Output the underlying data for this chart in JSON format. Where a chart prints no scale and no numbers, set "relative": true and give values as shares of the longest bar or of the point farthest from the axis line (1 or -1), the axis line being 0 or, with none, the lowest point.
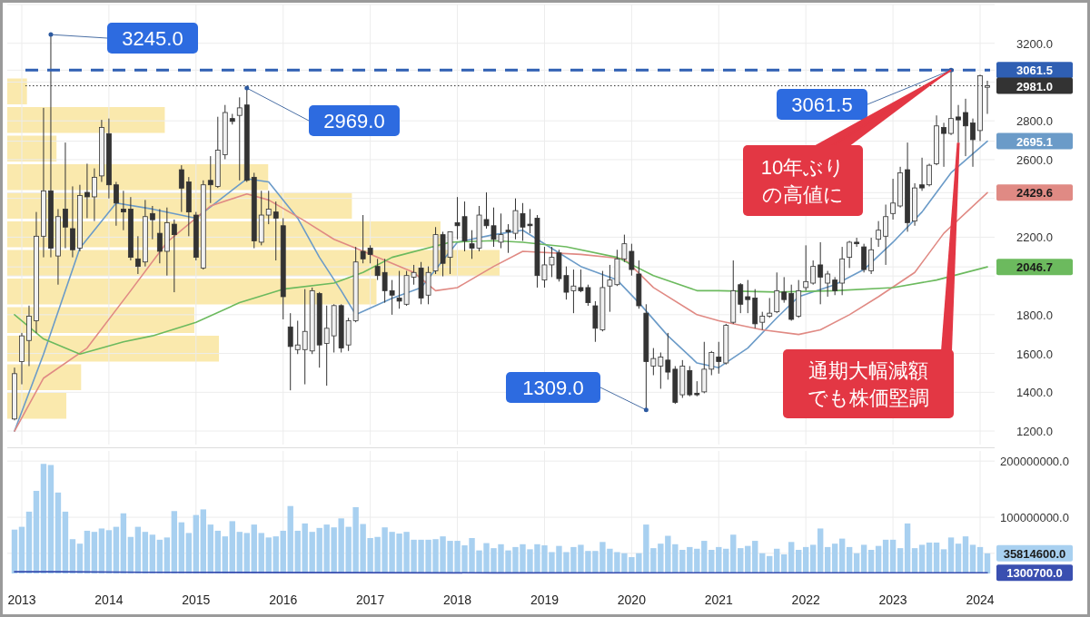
{
  "chart_data": [
    {
      "type": "candlestick",
      "color": "#333333",
      "grid": true,
      "tick_labels": "y",
      "xlim": [
        "2012-11",
        "2024-03"
      ],
      "xticks": [
        "2013",
        "2014",
        "2015",
        "2016",
        "2017",
        "2018",
        "2019",
        "2020",
        "2021",
        "2022",
        "2023",
        "2024"
      ],
      "ylim": [
        1130,
        3400
      ],
      "yticks": [
        {
          "value": 1200,
          "label": "1200.0"
        },
        {
          "value": 1400,
          "label": "1400.0"
        },
        {
          "value": 1600,
          "label": "1600.0"
        },
        {
          "value": 1800,
          "label": "1800.0"
        },
        {
          "value": 2000,
          "label": null
        },
        {
          "value": 2046.7,
          "label": "2046.7"
        },
        {
          "value": 2200,
          "label": "2200.0"
        },
        {
          "value": 2400,
          "label": null
        },
        {
          "value": 2429.6,
          "label": "2429.6"
        },
        {
          "value": 2600,
          "label": "2600.0"
        },
        {
          "value": 2695.1,
          "label": "2695.1"
        },
        {
          "value": 2800,
          "label": "2800.0"
        },
        {
          "value": 3000,
          "label": null
        },
        {
          "value": 3061.5,
          "label": "3061.5"
        },
        {
          "value": 3200,
          "label": "3200.0"
        },
        {
          "value": 3400,
          "label": null
        }
      ],
      "x": [
        "2012-12",
        "2013-01",
        "2013-02",
        "2013-03",
        "2013-04",
        "2013-05",
        "2013-06",
        "2013-07",
        "2013-08",
        "2013-09",
        "2013-10",
        "2013-11",
        "2013-12",
        "2014-01",
        "2014-02",
        "2014-03",
        "2014-04",
        "2014-05",
        "2014-06",
        "2014-07",
        "2014-08",
        "2014-09",
        "2014-10",
        "2014-11",
        "2014-12",
        "2015-01",
        "2015-02",
        "2015-03",
        "2015-04",
        "2015-05",
        "2015-06",
        "2015-07",
        "2015-08",
        "2015-09",
        "2015-10",
        "2015-11",
        "2015-12",
        "2016-01",
        "2016-02",
        "2016-03",
        "2016-04",
        "2016-05",
        "2016-06",
        "2016-07",
        "2016-08",
        "2016-09",
        "2016-10",
        "2016-11",
        "2016-12",
        "2017-01",
        "2017-02",
        "2017-03",
        "2017-04",
        "2017-05",
        "2017-06",
        "2017-07",
        "2017-08",
        "2017-09",
        "2017-10",
        "2017-11",
        "2017-12",
        "2018-01",
        "2018-02",
        "2018-03",
        "2018-04",
        "2018-05",
        "2018-06",
        "2018-07",
        "2018-08",
        "2018-09",
        "2018-10",
        "2018-11",
        "2018-12",
        "2019-01",
        "2019-02",
        "2019-03",
        "2019-04",
        "2019-05",
        "2019-06",
        "2019-07",
        "2019-08",
        "2019-09",
        "2019-10",
        "2019-11",
        "2019-12",
        "2020-01",
        "2020-02",
        "2020-03",
        "2020-04",
        "2020-05",
        "2020-06",
        "2020-07",
        "2020-08",
        "2020-09",
        "2020-10",
        "2020-11",
        "2020-12",
        "2021-01",
        "2021-02",
        "2021-03",
        "2021-04",
        "2021-05",
        "2021-06",
        "2021-07",
        "2021-08",
        "2021-09",
        "2021-10",
        "2021-11",
        "2021-12",
        "2022-01",
        "2022-02",
        "2022-03",
        "2022-04",
        "2022-05",
        "2022-06",
        "2022-07",
        "2022-08",
        "2022-09",
        "2022-10",
        "2022-11",
        "2022-12",
        "2023-01",
        "2023-02",
        "2023-03",
        "2023-04",
        "2023-05",
        "2023-06",
        "2023-07",
        "2023-08",
        "2023-09",
        "2023-10",
        "2023-11",
        "2023-12",
        "2024-01",
        "2024-02"
      ],
      "ohlc": [
        [
          1262,
          1527,
          1255,
          1496
        ],
        [
          1558,
          1706,
          1441,
          1691
        ],
        [
          1667,
          1847,
          1535,
          1792
        ],
        [
          1769,
          2330,
          1706,
          2205
        ],
        [
          2205,
          2867,
          2096,
          2439
        ],
        [
          2439,
          3245,
          2096,
          2143
        ],
        [
          2103,
          2345,
          1955,
          2306
        ],
        [
          2345,
          2688,
          2143,
          2252
        ],
        [
          2244,
          2462,
          2096,
          2135
        ],
        [
          2143,
          2470,
          2127,
          2415
        ],
        [
          2431,
          2579,
          2298,
          2408
        ],
        [
          2408,
          2555,
          2283,
          2509
        ],
        [
          2516,
          2805,
          2485,
          2766
        ],
        [
          2734,
          2812,
          2400,
          2470
        ],
        [
          2470,
          2485,
          2259,
          2376
        ],
        [
          2345,
          2439,
          2236,
          2330
        ],
        [
          2345,
          2407,
          2080,
          2096
        ],
        [
          2088,
          2205,
          2010,
          2049
        ],
        [
          2072,
          2392,
          2049,
          2306
        ],
        [
          2322,
          2361,
          2189,
          2290
        ],
        [
          2220,
          2345,
          2065,
          2127
        ],
        [
          2127,
          2353,
          2002,
          2275
        ],
        [
          2267,
          2291,
          1916,
          2213
        ],
        [
          2548,
          2571,
          2330,
          2453
        ],
        [
          2485,
          2510,
          2205,
          2330
        ],
        [
          2314,
          2330,
          2080,
          2096
        ],
        [
          2041,
          2493,
          2033,
          2470
        ],
        [
          2493,
          2618,
          2376,
          2470
        ],
        [
          2462,
          2821,
          2454,
          2649
        ],
        [
          2625,
          2882,
          2602,
          2843
        ],
        [
          2812,
          2836,
          2781,
          2797
        ],
        [
          2828,
          2921,
          2493,
          2867
        ],
        [
          2882,
          2969,
          2485,
          2493
        ],
        [
          2509,
          2532,
          2143,
          2181
        ],
        [
          2174,
          2439,
          2158,
          2314
        ],
        [
          2314,
          2439,
          2267,
          2345
        ],
        [
          2330,
          2384,
          2080,
          2298
        ],
        [
          2259,
          2298,
          1776,
          1893
        ],
        [
          1737,
          1808,
          1410,
          1636
        ],
        [
          1620,
          1769,
          1597,
          1644
        ],
        [
          1620,
          1932,
          1441,
          1714
        ],
        [
          1613,
          1940,
          1597,
          1924
        ],
        [
          1909,
          1917,
          1527,
          1644
        ],
        [
          1652,
          1847,
          1434,
          1730
        ],
        [
          1691,
          1854,
          1605,
          1847
        ],
        [
          1847,
          1854,
          1605,
          1628
        ],
        [
          1644,
          1784,
          1613,
          1769
        ],
        [
          1769,
          2150,
          1761,
          2072
        ],
        [
          2127,
          2314,
          2065,
          2088
        ],
        [
          2143,
          2158,
          2065,
          2111
        ],
        [
          2049,
          2088,
          1979,
          2002
        ],
        [
          2018,
          2088,
          1862,
          1924
        ],
        [
          1924,
          1979,
          1800,
          1901
        ],
        [
          1886,
          2026,
          1831,
          1870
        ],
        [
          1854,
          2026,
          1846,
          2002
        ],
        [
          1994,
          2057,
          1955,
          2018
        ],
        [
          2041,
          2072,
          1854,
          1886
        ],
        [
          1901,
          2049,
          1854,
          2018
        ],
        [
          2026,
          2252,
          2010,
          2213
        ],
        [
          2213,
          2228,
          1998,
          2065
        ],
        [
          2096,
          2228,
          2010,
          2228
        ],
        [
          2275,
          2407,
          2189,
          2259
        ],
        [
          2306,
          2384,
          2127,
          2181
        ],
        [
          2166,
          2236,
          2088,
          2143
        ],
        [
          2143,
          2361,
          2127,
          2314
        ],
        [
          2291,
          2431,
          2244,
          2259
        ],
        [
          2259,
          2353,
          2150,
          2189
        ],
        [
          2174,
          2322,
          2143,
          2213
        ],
        [
          2236,
          2267,
          2119,
          2228
        ],
        [
          2220,
          2400,
          2189,
          2337
        ],
        [
          2322,
          2376,
          2181,
          2252
        ],
        [
          2267,
          2345,
          2220,
          2259
        ],
        [
          2298,
          2314,
          1940,
          2002
        ],
        [
          1979,
          2150,
          1940,
          2057
        ],
        [
          2057,
          2150,
          1994,
          2096
        ],
        [
          2119,
          2135,
          1971,
          1986
        ],
        [
          2002,
          2049,
          1878,
          1916
        ],
        [
          1924,
          2033,
          1808,
          1948
        ],
        [
          1940,
          2033,
          1916,
          1924
        ],
        [
          1940,
          1955,
          1846,
          1862
        ],
        [
          1846,
          1870,
          1660,
          1730
        ],
        [
          1722,
          2026,
          1714,
          1940
        ],
        [
          1948,
          2057,
          1815,
          1979
        ],
        [
          1955,
          2135,
          1948,
          2088
        ],
        [
          2088,
          2213,
          2072,
          2166
        ],
        [
          2127,
          2166,
          2002,
          2033
        ],
        [
          2010,
          2080,
          1831,
          1846
        ],
        [
          1808,
          1854,
          1309,
          1558
        ],
        [
          1535,
          1628,
          1488,
          1574
        ],
        [
          1535,
          1605,
          1418,
          1582
        ],
        [
          1566,
          1706,
          1465,
          1504
        ],
        [
          1519,
          1535,
          1340,
          1348
        ],
        [
          1387,
          1566,
          1371,
          1535
        ],
        [
          1512,
          1535,
          1379,
          1387
        ],
        [
          1395,
          1457,
          1379,
          1387
        ],
        [
          1402,
          1660,
          1395,
          1519
        ],
        [
          1519,
          1613,
          1488,
          1605
        ],
        [
          1582,
          1660,
          1496,
          1558
        ],
        [
          1551,
          1753,
          1543,
          1745
        ],
        [
          1761,
          2080,
          1753,
          1924
        ],
        [
          1955,
          1963,
          1808,
          1854
        ],
        [
          1893,
          1979,
          1808,
          1878
        ],
        [
          1886,
          1932,
          1730,
          1753
        ],
        [
          1761,
          1815,
          1722,
          1792
        ],
        [
          1792,
          1886,
          1784,
          1808
        ],
        [
          1815,
          2018,
          1808,
          1924
        ],
        [
          1917,
          1994,
          1862,
          1878
        ],
        [
          1909,
          1955,
          1769,
          1776
        ],
        [
          1792,
          1979,
          1784,
          1924
        ],
        [
          1940,
          2158,
          1924,
          1971
        ],
        [
          1963,
          2080,
          1955,
          2049
        ],
        [
          2057,
          2174,
          1854,
          1994
        ],
        [
          1963,
          2026,
          1893,
          2010
        ],
        [
          1979,
          1994,
          1901,
          1924
        ],
        [
          1963,
          2150,
          1901,
          2088
        ],
        [
          2096,
          2181,
          2041,
          2174
        ],
        [
          2174,
          2197,
          2150,
          2166
        ],
        [
          2150,
          2166,
          2018,
          2033
        ],
        [
          2026,
          2197,
          2010,
          2135
        ],
        [
          2189,
          2283,
          2150,
          2236
        ],
        [
          2205,
          2368,
          2057,
          2306
        ],
        [
          2322,
          2501,
          2291,
          2376
        ],
        [
          2361,
          2563,
          2353,
          2532
        ],
        [
          2548,
          2688,
          2228,
          2275
        ],
        [
          2283,
          2478,
          2259,
          2454
        ],
        [
          2470,
          2610,
          2439,
          2454
        ],
        [
          2470,
          2579,
          2462,
          2571
        ],
        [
          2579,
          2828,
          2571,
          2774
        ],
        [
          2766,
          2790,
          2563,
          2735
        ],
        [
          2735,
          3061.5,
          2727,
          2812
        ],
        [
          2820,
          2882,
          2687,
          2805
        ],
        [
          2843,
          2914,
          2618,
          2774
        ],
        [
          2789,
          2812,
          2563,
          2703
        ],
        [
          2750,
          3038,
          2696,
          3033
        ],
        [
          2973,
          3007,
          2836,
          2981
        ]
      ],
      "series": [
        {
          "type": "line",
          "color": "#6b9bc8",
          "x": [
            "2012-12",
            "2013-04",
            "2013-09",
            "2014-02",
            "2014-07",
            "2015-01",
            "2015-08",
            "2015-11",
            "2016-03",
            "2016-06",
            "2016-09",
            "2016-11",
            "2017-04",
            "2017-08",
            "2018-01",
            "2018-06",
            "2018-10",
            "2019-02",
            "2019-06",
            "2019-11",
            "2020-02",
            "2020-06",
            "2020-10",
            "2021-01",
            "2021-05",
            "2021-09",
            "2021-12",
            "2022-05",
            "2022-09",
            "2023-01",
            "2023-05",
            "2023-09",
            "2024-02"
          ],
          "values": [
            1200,
            1597,
            2143,
            2376,
            2345,
            2298,
            2501,
            2485,
            2298,
            2096,
            1924,
            1800,
            1885,
            1940,
            2174,
            2213,
            2236,
            2142,
            2049,
            1979,
            1862,
            1691,
            1551,
            1527,
            1628,
            1784,
            1893,
            1955,
            2033,
            2174,
            2330,
            2532,
            2695.1
          ]
        },
        {
          "type": "line",
          "color": "#e08a84",
          "x": [
            "2012-12",
            "2013-04",
            "2013-10",
            "2014-04",
            "2014-09",
            "2015-03",
            "2015-08",
            "2015-11",
            "2016-04",
            "2016-08",
            "2016-11",
            "2017-07",
            "2017-10",
            "2018-01",
            "2018-06",
            "2018-10",
            "2019-06",
            "2019-12",
            "2020-04",
            "2020-10",
            "2021-01",
            "2021-07",
            "2021-12",
            "2022-03",
            "2022-07",
            "2022-11",
            "2023-04",
            "2023-08",
            "2024-02"
          ],
          "values": [
            1200,
            1473,
            1628,
            1924,
            2174,
            2361,
            2423,
            2392,
            2283,
            2189,
            2143,
            2018,
            1924,
            1940,
            2049,
            2127,
            2111,
            2088,
            1940,
            1800,
            1769,
            1722,
            1698,
            1722,
            1800,
            1893,
            2018,
            2220,
            2429.6
          ]
        },
        {
          "type": "line",
          "color": "#6cba5e",
          "x": [
            "2012-12",
            "2013-04",
            "2013-09",
            "2014-03",
            "2014-07",
            "2015-01",
            "2015-07",
            "2016-01",
            "2016-08",
            "2016-12",
            "2017-04",
            "2017-12",
            "2018-06",
            "2018-10",
            "2019-04",
            "2019-11",
            "2020-04",
            "2020-10",
            "2021-01",
            "2021-09",
            "2022-05",
            "2023-01",
            "2023-07",
            "2024-02"
          ],
          "values": [
            1800,
            1675,
            1597,
            1660,
            1691,
            1761,
            1862,
            1932,
            1963,
            2018,
            2096,
            2174,
            2182,
            2174,
            2150,
            2096,
            2002,
            1924,
            1924,
            1917,
            1924,
            1940,
            1979,
            2046.7
          ]
        }
      ],
      "ref_lines": [
        {
          "axis": "y",
          "value": 3061.5,
          "color": "#2f5fb3",
          "line_style": "dashed"
        },
        {
          "axis": "y",
          "value": 2981,
          "label": "2981.0",
          "color": "#333333",
          "line_style": "dotted"
        }
      ],
      "annotations": [
        {
          "text": "3245.0",
          "x": "2013-05",
          "y": 3245
        },
        {
          "text": "2969.0",
          "x": "2015-08",
          "y": 2969
        },
        {
          "text": "1309.0",
          "x": "2020-03",
          "y": 1309
        },
        {
          "text": "3061.5",
          "x": "2023-09",
          "y": 3061.5
        },
        {
          "text": "10年ぶりの高値に",
          "x": "2023-09",
          "y": 3061.5
        },
        {
          "text": "通期大幅減額でも株価堅調",
          "x": "2023-10",
          "y": 2687
        }
      ]
    },
    {
      "type": "bar",
      "orientation": "horizontal",
      "relative": true,
      "color": "#f8e08e",
      "categories": [
        null,
        null,
        null,
        null,
        null,
        null,
        null,
        null,
        null,
        null,
        null,
        null
      ],
      "values": [
        0.04,
        0.32,
        0.1,
        0.53,
        0.7,
        0.88,
        1,
        0.75,
        0.38,
        0.43,
        0.15,
        0.12
      ]
    },
    {
      "type": "bar",
      "grid": true,
      "xlim": [
        "2012-11",
        "2024-03"
      ],
      "xticks": [
        "2013",
        "2014",
        "2015",
        "2016",
        "2017",
        "2018",
        "2019",
        "2020",
        "2021",
        "2022",
        "2023",
        "2024"
      ],
      "ylim": [
        0,
        218000000
      ],
      "yticks": [
        {
          "value": 35814600,
          "label": "35814600.0"
        },
        {
          "value": 100000000,
          "label": "100000000.0"
        },
        {
          "value": 200000000,
          "label": "200000000.0"
        }
      ],
      "x": [
        "2012-12",
        "2013-01",
        "2013-02",
        "2013-03",
        "2013-04",
        "2013-05",
        "2013-06",
        "2013-07",
        "2013-08",
        "2013-09",
        "2013-10",
        "2013-11",
        "2013-12",
        "2014-01",
        "2014-02",
        "2014-03",
        "2014-04",
        "2014-05",
        "2014-06",
        "2014-07",
        "2014-08",
        "2014-09",
        "2014-10",
        "2014-11",
        "2014-12",
        "2015-01",
        "2015-02",
        "2015-03",
        "2015-04",
        "2015-05",
        "2015-06",
        "2015-07",
        "2015-08",
        "2015-09",
        "2015-10",
        "2015-11",
        "2015-12",
        "2016-01",
        "2016-02",
        "2016-03",
        "2016-04",
        "2016-05",
        "2016-06",
        "2016-07",
        "2016-08",
        "2016-09",
        "2016-10",
        "2016-11",
        "2016-12",
        "2017-01",
        "2017-02",
        "2017-03",
        "2017-04",
        "2017-05",
        "2017-06",
        "2017-07",
        "2017-08",
        "2017-09",
        "2017-10",
        "2017-11",
        "2017-12",
        "2018-01",
        "2018-02",
        "2018-03",
        "2018-04",
        "2018-05",
        "2018-06",
        "2018-07",
        "2018-08",
        "2018-09",
        "2018-10",
        "2018-11",
        "2018-12",
        "2019-01",
        "2019-02",
        "2019-03",
        "2019-04",
        "2019-05",
        "2019-06",
        "2019-07",
        "2019-08",
        "2019-09",
        "2019-10",
        "2019-11",
        "2019-12",
        "2020-01",
        "2020-02",
        "2020-03",
        "2020-04",
        "2020-05",
        "2020-06",
        "2020-07",
        "2020-08",
        "2020-09",
        "2020-10",
        "2020-11",
        "2020-12",
        "2021-01",
        "2021-02",
        "2021-03",
        "2021-04",
        "2021-05",
        "2021-06",
        "2021-07",
        "2021-08",
        "2021-09",
        "2021-10",
        "2021-11",
        "2021-12",
        "2022-01",
        "2022-02",
        "2022-03",
        "2022-04",
        "2022-05",
        "2022-06",
        "2022-07",
        "2022-08",
        "2022-09",
        "2022-10",
        "2022-11",
        "2022-12",
        "2023-01",
        "2023-02",
        "2023-03",
        "2023-04",
        "2023-05",
        "2023-06",
        "2023-07",
        "2023-08",
        "2023-09",
        "2023-10",
        "2023-11",
        "2023-12",
        "2024-01",
        "2024-02"
      ],
      "series": [
        {
          "type": "bar",
          "color": "#a8d0f0",
          "values": [
            78000000,
            83000000,
            110000000,
            147000000,
            195000000,
            193000000,
            144000000,
            110000000,
            61000000,
            53000000,
            76000000,
            74000000,
            80000000,
            77000000,
            83000000,
            107000000,
            65000000,
            83000000,
            74000000,
            69000000,
            60000000,
            64000000,
            111000000,
            91000000,
            72000000,
            104000000,
            114000000,
            87000000,
            76000000,
            66000000,
            93000000,
            74000000,
            72000000,
            87000000,
            72000000,
            64000000,
            66000000,
            76000000,
            120000000,
            76000000,
            89000000,
            74000000,
            81000000,
            87000000,
            82000000,
            98000000,
            83000000,
            118000000,
            88000000,
            63000000,
            65000000,
            82000000,
            74000000,
            71000000,
            74000000,
            60000000,
            60000000,
            60000000,
            61000000,
            66000000,
            58000000,
            58000000,
            50000000,
            63000000,
            41000000,
            54000000,
            45000000,
            52000000,
            41000000,
            47000000,
            52000000,
            43000000,
            52000000,
            50000000,
            38000000,
            49000000,
            38000000,
            47000000,
            51000000,
            40000000,
            40000000,
            56000000,
            44000000,
            38000000,
            36000000,
            29000000,
            36000000,
            87000000,
            45000000,
            53000000,
            67000000,
            52000000,
            42000000,
            47000000,
            44000000,
            58000000,
            42000000,
            47000000,
            44000000,
            69000000,
            45000000,
            49000000,
            58000000,
            36000000,
            31000000,
            44000000,
            34000000,
            56000000,
            42000000,
            47000000,
            51000000,
            80000000,
            47000000,
            53000000,
            62000000,
            47000000,
            36000000,
            51000000,
            42000000,
            49000000,
            60000000,
            60000000,
            45000000,
            89000000,
            45000000,
            51000000,
            55000000,
            55000000,
            43000000,
            64000000,
            53000000,
            66000000,
            51000000,
            47000000,
            35814600
          ]
        },
        {
          "type": "line",
          "color": "#3a4fb0",
          "x": [
            "2012-12",
            "2013-06",
            "2014-06",
            "2018-06",
            "2024-02"
          ],
          "values": [
            3000000,
            3000000,
            2000000,
            1000000,
            1300700
          ],
          "value_labels": [
            null,
            null,
            null,
            null,
            "1300700.0"
          ]
        }
      ]
    }
  ]
}
